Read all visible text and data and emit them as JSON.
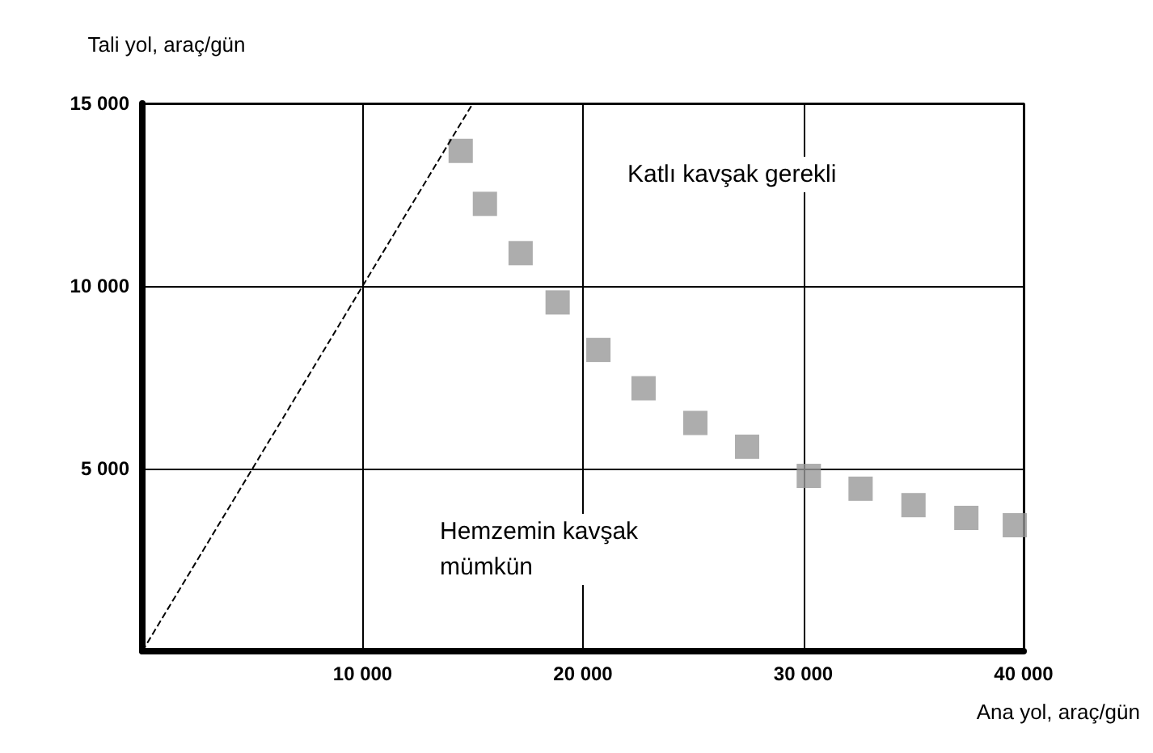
{
  "chart_data": {
    "type": "scatter",
    "xlabel": "Ana yol, araç/gün",
    "ylabel": "Tali yol, araç/gün",
    "xlim": [
      0,
      40000
    ],
    "ylim": [
      0,
      15000
    ],
    "xticks": [
      {
        "value": 0,
        "label": null
      },
      {
        "value": 10000,
        "label": "10 000"
      },
      {
        "value": 20000,
        "label": "20 000"
      },
      {
        "value": 30000,
        "label": "30 000"
      },
      {
        "value": 40000,
        "label": "40 000"
      }
    ],
    "yticks": [
      {
        "value": 0,
        "label": null
      },
      {
        "value": 5000,
        "label": "5 000"
      },
      {
        "value": 10000,
        "label": "10 000"
      },
      {
        "value": 15000,
        "label": "15 000"
      }
    ],
    "grid": true,
    "series": [
      {
        "type": "line",
        "color": "#000000",
        "line_style": "dashed",
        "marker": "none",
        "x": [
          0,
          15000
        ],
        "values": [
          0,
          15000
        ]
      },
      {
        "color": "#999999",
        "marker": "square",
        "x": [
          14450,
          15550,
          17170,
          18850,
          20700,
          22750,
          25100,
          27450,
          30250,
          32600,
          35000,
          37400,
          39600
        ],
        "values": [
          13700,
          12250,
          10900,
          9550,
          8250,
          7200,
          6250,
          5600,
          4800,
          4450,
          4000,
          3650,
          3450
        ]
      }
    ],
    "annotations": [
      "Katlı kavşak gerekli",
      "Hemzemin kavşak mümkün"
    ]
  }
}
